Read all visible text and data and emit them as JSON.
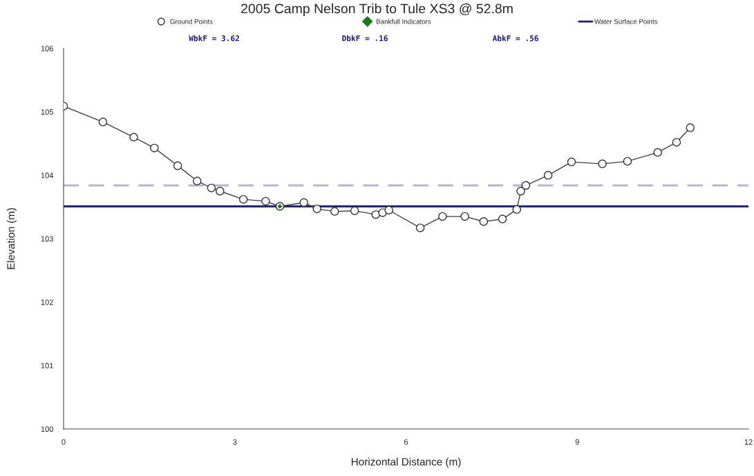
{
  "chart_data": {
    "type": "line",
    "title": "2005 Camp Nelson Trib to Tule XS3 @ 52.8m",
    "xlabel": "Horizontal Distance (m)",
    "ylabel": "Elevation (m)",
    "xlim": [
      0,
      12
    ],
    "xticks": [
      0,
      3,
      6,
      9,
      12
    ],
    "ylim": [
      100,
      106
    ],
    "yticks": [
      100,
      101,
      102,
      103,
      104,
      105,
      106
    ],
    "grid": false,
    "legend": "top",
    "series": [
      {
        "name": "Ground Points",
        "color": "#404040",
        "marker": "circle",
        "x": [
          0,
          0.69,
          1.23,
          1.59,
          2.0,
          2.34,
          2.59,
          2.74,
          3.15,
          3.54,
          3.79,
          4.21,
          4.44,
          4.75,
          5.1,
          5.47,
          5.59,
          5.7,
          6.25,
          6.64,
          7.03,
          7.36,
          7.69,
          7.94,
          8.01,
          8.1,
          8.49,
          8.9,
          9.44,
          9.88,
          10.41,
          10.74,
          10.98
        ],
        "values": [
          105.09,
          104.84,
          104.6,
          104.43,
          104.15,
          103.91,
          103.8,
          103.75,
          103.62,
          103.59,
          103.51,
          103.57,
          103.47,
          103.43,
          103.44,
          103.38,
          103.41,
          103.45,
          103.17,
          103.35,
          103.35,
          103.27,
          103.31,
          103.46,
          103.75,
          103.84,
          104.0,
          104.21,
          104.18,
          104.22,
          104.36,
          104.52,
          104.75
        ]
      },
      {
        "name": "Bankfull Indicators",
        "type": "scatter",
        "color": "#1a7a1a",
        "marker": "diamond",
        "x": [
          3.79
        ],
        "values": [
          103.51
        ]
      },
      {
        "name": "Water Surface Points",
        "type": "line",
        "color": "#1a1a80",
        "marker": "none",
        "x": [
          0,
          12
        ],
        "values": [
          103.51,
          103.51
        ]
      }
    ],
    "ref_lines": [
      {
        "axis": "y",
        "value": 103.84,
        "color": "#b4b4d4",
        "line_style": "dashed"
      }
    ],
    "annotations": [
      "WbkF = 3.62",
      "DbkF = .16",
      "AbkF = .56"
    ]
  }
}
